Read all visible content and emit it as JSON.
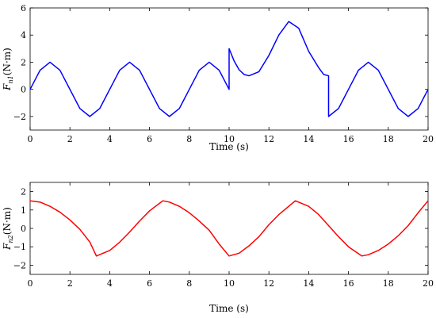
{
  "chart_data": [
    {
      "type": "line",
      "title": "",
      "xlabel": "Time  (s)",
      "ylabel_main": "F",
      "ylabel_sub": "n1",
      "ylabel_unit": "(N·m)",
      "xlim": [
        0,
        20
      ],
      "ylim": [
        -3,
        6
      ],
      "grid": false,
      "xticks": [
        0,
        2,
        4,
        6,
        8,
        10,
        12,
        14,
        16,
        18,
        20
      ],
      "yticks": [
        -2,
        0,
        2,
        4,
        6
      ],
      "series": [
        {
          "color": "#0000ff",
          "x": [
            0,
            0.5,
            1,
            1.5,
            2,
            2.5,
            3,
            3.5,
            4,
            4.5,
            5,
            5.5,
            6,
            6.5,
            7,
            7.5,
            8,
            8.5,
            9,
            9.5,
            10,
            10,
            10.25,
            10.5,
            10.75,
            11,
            11.5,
            12,
            12.5,
            13,
            13.5,
            14,
            14.5,
            14.75,
            15,
            15,
            15.5,
            16,
            16.5,
            17,
            17.5,
            18,
            18.5,
            19,
            19.5,
            20
          ],
          "y": [
            0,
            1.41,
            2,
            1.41,
            0,
            -1.41,
            -2,
            -1.41,
            0,
            1.41,
            2,
            1.41,
            0,
            -1.41,
            -2,
            -1.41,
            0,
            1.41,
            2,
            1.41,
            0,
            3,
            2.1,
            1.45,
            1.1,
            1,
            1.3,
            2.5,
            4,
            5,
            4.5,
            2.8,
            1.6,
            1.1,
            1,
            -2,
            -1.41,
            0,
            1.41,
            2,
            1.41,
            0,
            -1.41,
            -2,
            -1.41,
            0
          ]
        }
      ]
    },
    {
      "type": "line",
      "title": "",
      "xlabel": "Time  (s)",
      "ylabel_main": "F",
      "ylabel_sub": "n2",
      "ylabel_unit": "(N·m)",
      "xlim": [
        0,
        20
      ],
      "ylim": [
        -2.5,
        2.5
      ],
      "grid": false,
      "xticks": [
        0,
        2,
        4,
        6,
        8,
        10,
        12,
        14,
        16,
        18,
        20
      ],
      "yticks": [
        -2,
        -1,
        0,
        1,
        2
      ],
      "series": [
        {
          "color": "#ff0000",
          "x": [
            0,
            0.5,
            1,
            1.5,
            2,
            2.5,
            3,
            3.33,
            4,
            4.5,
            5,
            5.5,
            6,
            6.67,
            7,
            7.5,
            8,
            8.5,
            9,
            9.5,
            10,
            10.5,
            11,
            11.5,
            12,
            12.5,
            13.33,
            14,
            14.5,
            15,
            15.5,
            16,
            16.67,
            17,
            17.5,
            18,
            18.5,
            19,
            19.5,
            20
          ],
          "y": [
            1.5,
            1.43,
            1.2,
            0.88,
            0.46,
            -0.05,
            -0.74,
            -1.5,
            -1.2,
            -0.75,
            -0.2,
            0.4,
            0.95,
            1.5,
            1.43,
            1.2,
            0.85,
            0.4,
            -0.1,
            -0.85,
            -1.5,
            -1.35,
            -0.95,
            -0.45,
            0.2,
            0.75,
            1.5,
            1.2,
            0.75,
            0.15,
            -0.45,
            -1.0,
            -1.5,
            -1.43,
            -1.2,
            -0.85,
            -0.4,
            0.15,
            0.85,
            1.5
          ]
        }
      ]
    }
  ]
}
